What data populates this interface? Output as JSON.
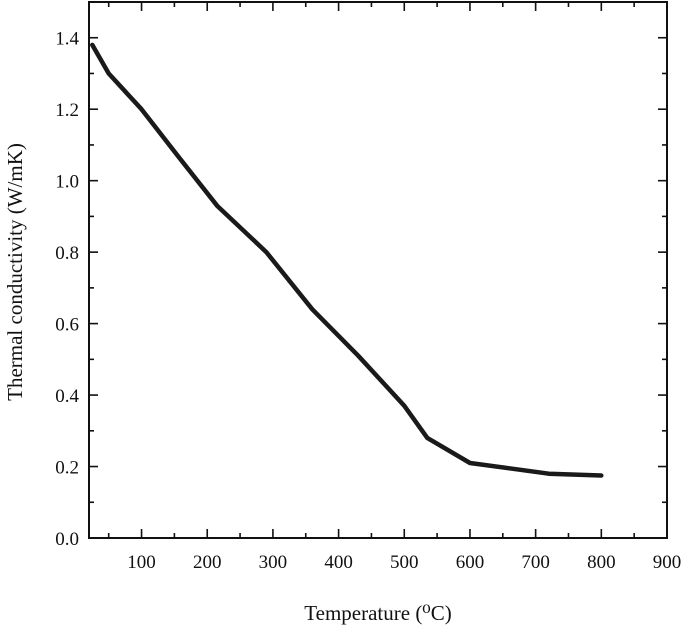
{
  "chart_data": {
    "type": "line",
    "xlabel": "Temperature (⁰C)",
    "ylabel": "Thermal conductivity (W/mK)",
    "xlim": [
      20,
      900
    ],
    "ylim": [
      0,
      1.5
    ],
    "xticks": [
      100,
      200,
      300,
      400,
      500,
      600,
      700,
      800,
      900
    ],
    "xtick_labels": [
      "100",
      "200",
      "300",
      "400",
      "500",
      "600",
      "700",
      "800",
      "900"
    ],
    "yticks": [
      0.0,
      0.2,
      0.4,
      0.6,
      0.8,
      1.0,
      1.2,
      1.4
    ],
    "ytick_labels": [
      "0.0",
      "0.2",
      "0.4",
      "0.6",
      "0.8",
      "1.0",
      "1.2",
      "1.4"
    ],
    "grid": false,
    "series": [
      {
        "x": [
          25,
          50,
          100,
          155,
          215,
          290,
          360,
          430,
          500,
          535,
          600,
          660,
          720,
          800
        ],
        "y": [
          1.38,
          1.3,
          1.2,
          1.07,
          0.93,
          0.8,
          0.64,
          0.51,
          0.37,
          0.28,
          0.21,
          0.195,
          0.18,
          0.175
        ]
      }
    ]
  }
}
